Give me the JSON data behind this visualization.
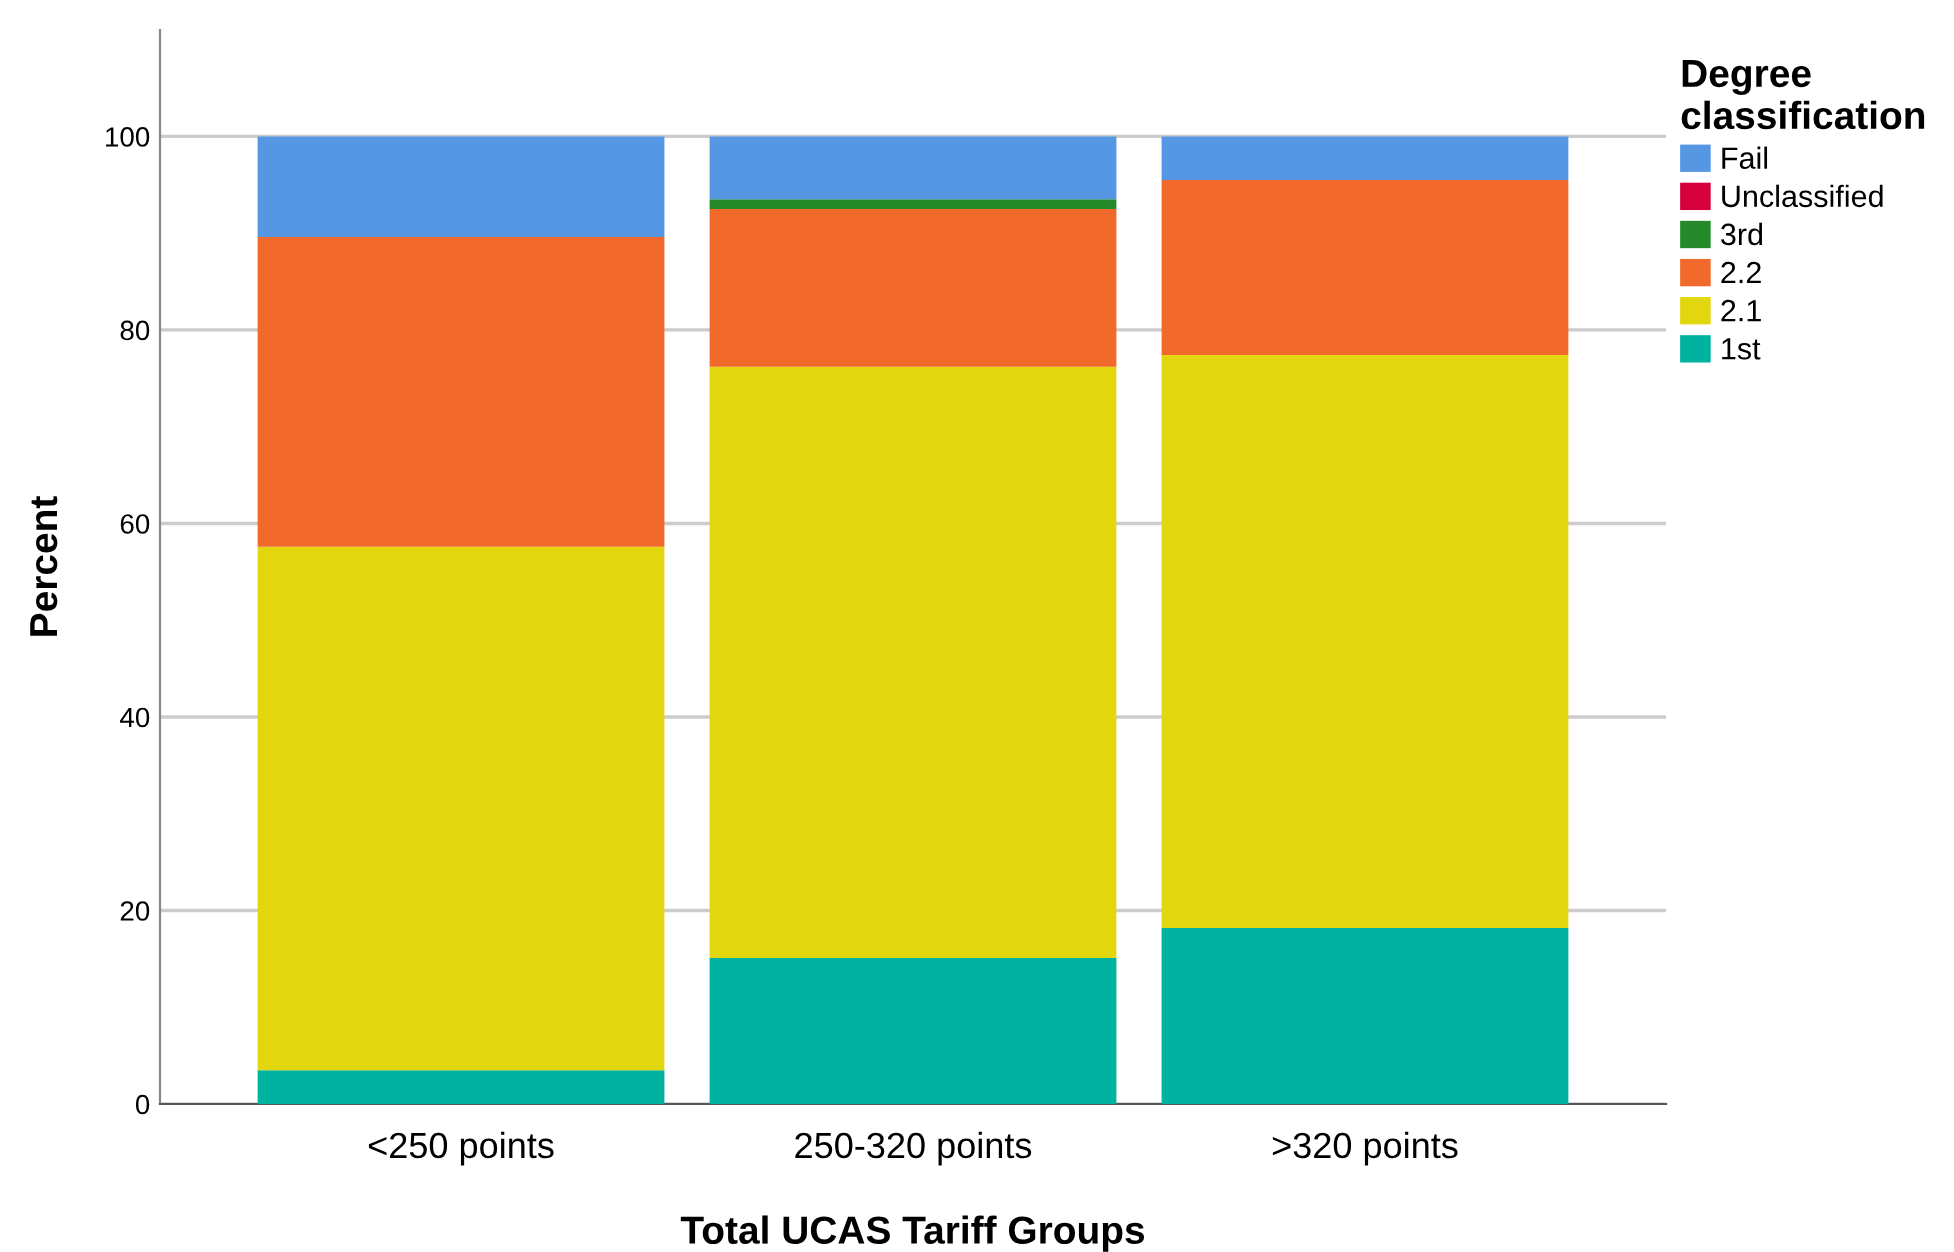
{
  "chart_data": {
    "type": "bar",
    "stacked": true,
    "xlabel": "Total UCAS Tariff Groups",
    "ylabel": "Percent",
    "legend_title": "Degree\nclassification",
    "categories": [
      "<250 points",
      "250-320 points",
      ">320 points"
    ],
    "series": [
      {
        "name": "1st",
        "color": "#00b2a0",
        "values": [
          3.5,
          15.1,
          18.2
        ]
      },
      {
        "name": "2.1",
        "color": "#e2d70f",
        "values": [
          54.1,
          61.1,
          59.2
        ]
      },
      {
        "name": "2.2",
        "color": "#f2692c",
        "values": [
          32.0,
          16.3,
          18.1
        ]
      },
      {
        "name": "3rd",
        "color": "#248a2a",
        "values": [
          0,
          1.0,
          0
        ]
      },
      {
        "name": "Unclassified",
        "color": "#d6003d",
        "values": [
          0,
          0,
          0
        ]
      },
      {
        "name": "Fail",
        "color": "#5597e3",
        "values": [
          10.4,
          6.5,
          4.5
        ]
      }
    ],
    "ylim": [
      0,
      111
    ],
    "yticks": [
      0,
      20,
      40,
      60,
      80,
      100
    ],
    "grid": "y",
    "legend": "top right"
  }
}
